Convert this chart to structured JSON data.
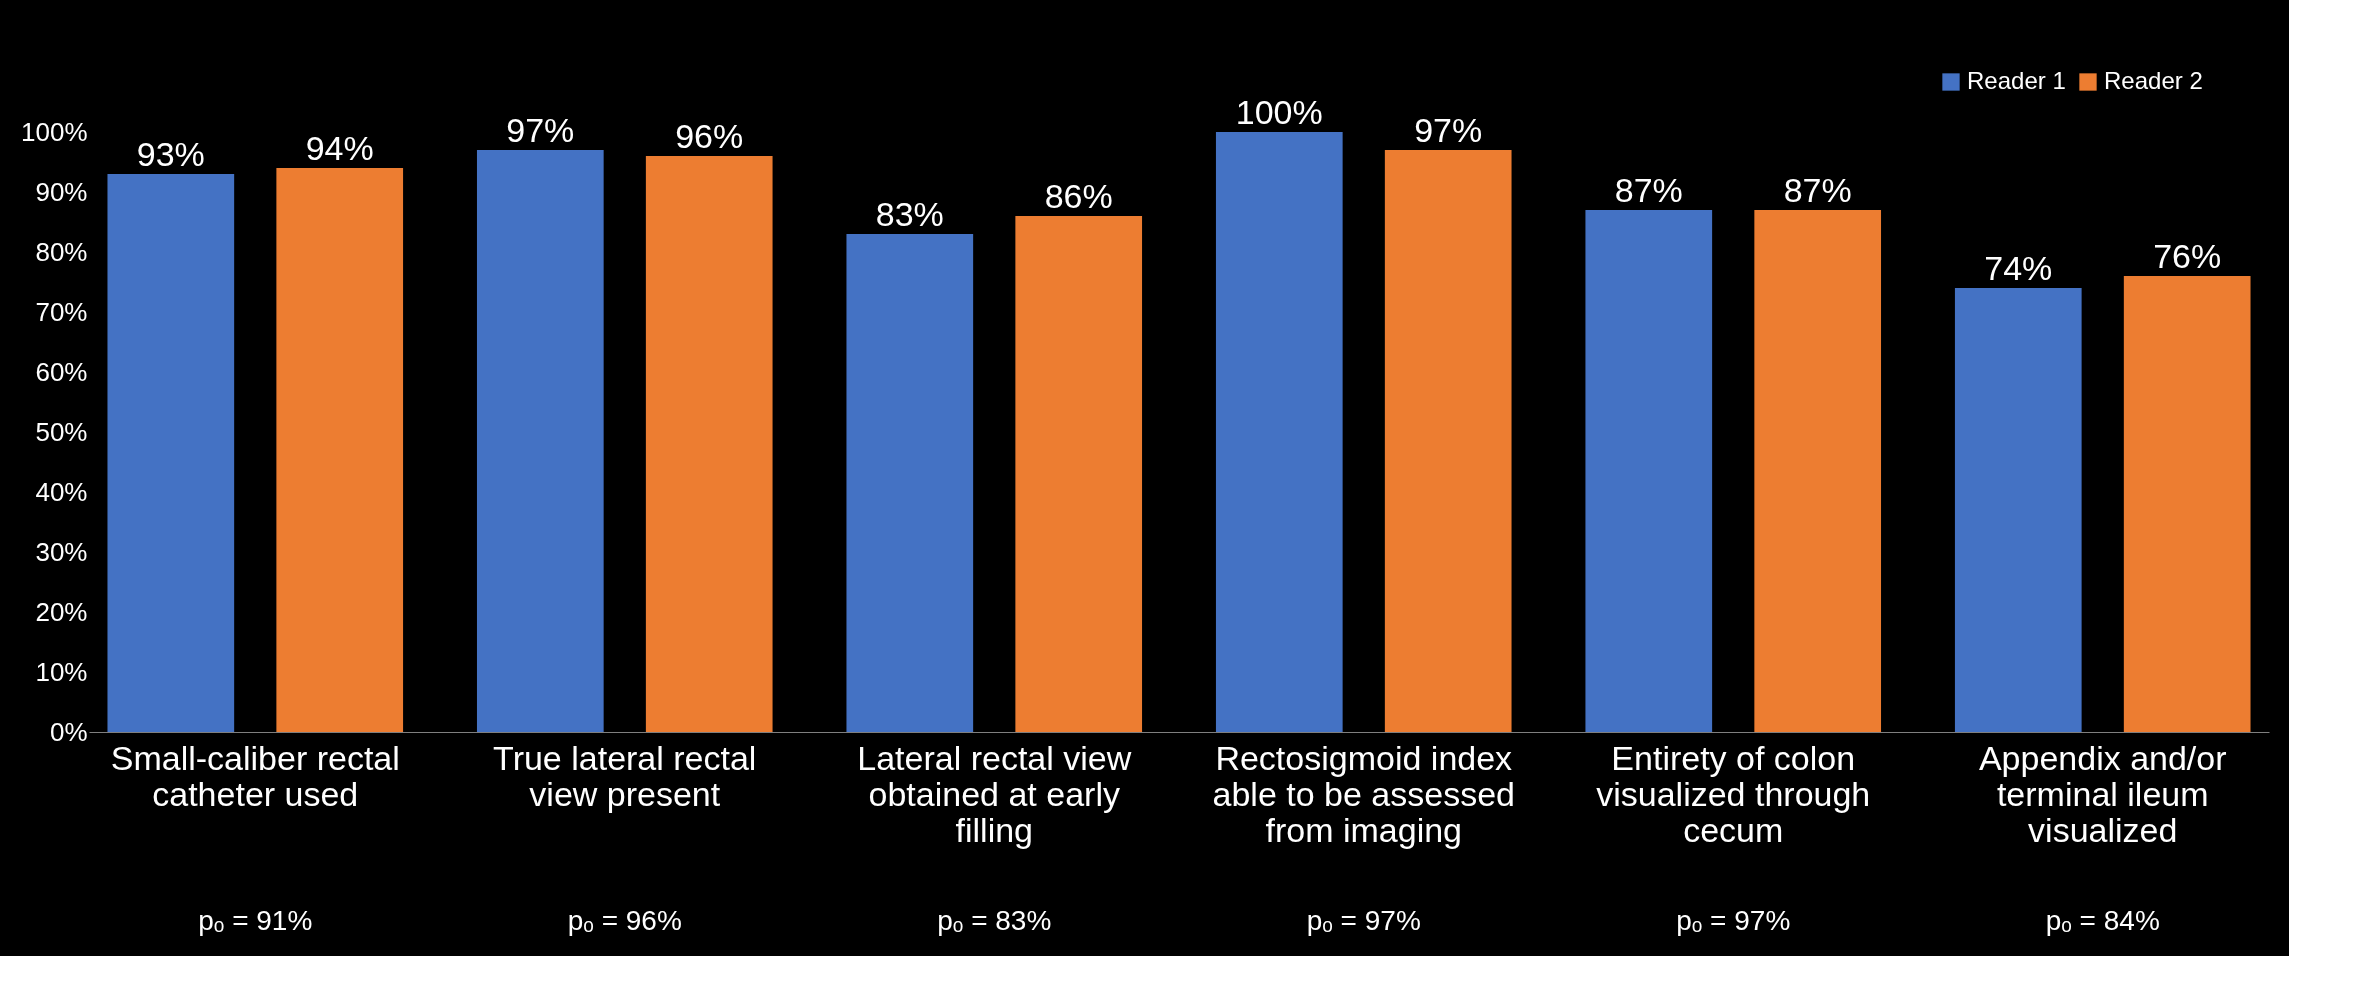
{
  "chart_data": {
    "type": "bar",
    "categories": [
      "Small-caliber rectal catheter used",
      "True lateral rectal view present",
      "Lateral rectal view obtained at early filling",
      "Rectosigmoid index able to be assessed from imaging",
      "Entirety of colon visualized through cecum",
      "Appendix and/or terminal ileum visualized"
    ],
    "series": [
      {
        "name": "Reader 1",
        "color": "#4472c4",
        "values": [
          93,
          97,
          83,
          100,
          87,
          74
        ],
        "value_labels": [
          "93%",
          "97%",
          "83%",
          "100%",
          "87%",
          "74%"
        ]
      },
      {
        "name": "Reader 2",
        "color": "#ed7d31",
        "values": [
          94,
          96,
          86,
          97,
          87,
          76
        ],
        "value_labels": [
          "94%",
          "96%",
          "86%",
          "97%",
          "87%",
          "76%"
        ]
      }
    ],
    "ylim": [
      0,
      100
    ],
    "yticks": [
      {
        "value": 0,
        "label": "0%"
      },
      {
        "value": 10,
        "label": "10%"
      },
      {
        "value": 20,
        "label": "20%"
      },
      {
        "value": 30,
        "label": "30%"
      },
      {
        "value": 40,
        "label": "40%"
      },
      {
        "value": 50,
        "label": "50%"
      },
      {
        "value": 60,
        "label": "60%"
      },
      {
        "value": 70,
        "label": "70%"
      },
      {
        "value": 80,
        "label": "80%"
      },
      {
        "value": 90,
        "label": "90%"
      },
      {
        "value": 100,
        "label": "100%"
      }
    ],
    "grid": false,
    "legend": "top right",
    "annotations": [
      "pₒ = 91%",
      "pₒ = 96%",
      "pₒ = 83%",
      "pₒ = 97%",
      "pₒ = 97%",
      "pₒ = 84%"
    ]
  }
}
